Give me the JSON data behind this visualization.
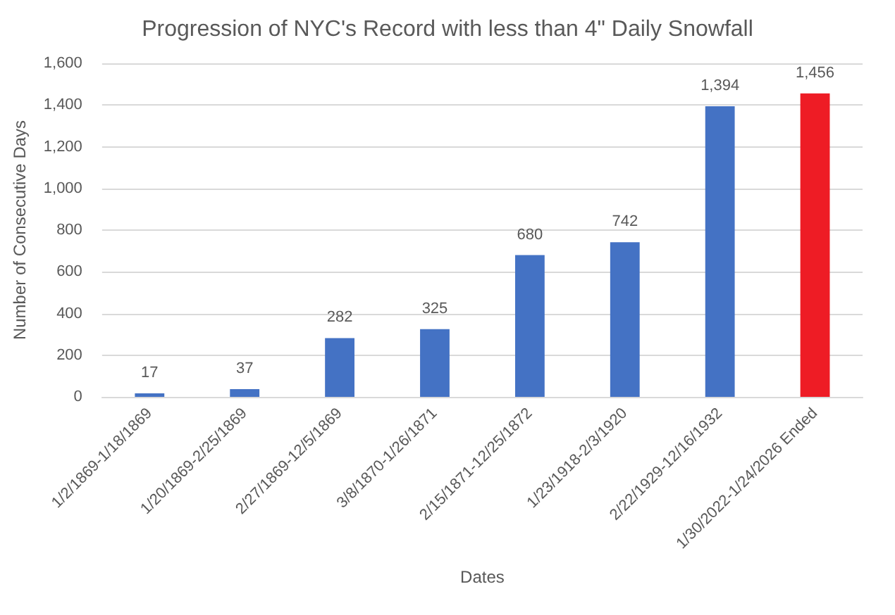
{
  "chart_data": {
    "type": "bar",
    "title": "Progression of NYC's Record with less than 4\" Daily Snowfall",
    "xlabel": "Dates",
    "ylabel": "Number of Consecutive Days",
    "categories": [
      "1/2/1869-1/18/1869",
      "1/20/1869-2/25/1869",
      "2/27/1869-12/5/1869",
      "3/8/1870-1/26/1871",
      "2/15/1871-12/25/1872",
      "1/23/1918-2/3/1920",
      "2/22/1929-12/16/1932",
      "1/30/2022-1/24/2026 Ended"
    ],
    "values": [
      17,
      37,
      282,
      325,
      680,
      742,
      1394,
      1456
    ],
    "value_labels": [
      "17",
      "37",
      "282",
      "325",
      "680",
      "742",
      "1,394",
      "1,456"
    ],
    "colors": [
      "#4472c4",
      "#4472c4",
      "#4472c4",
      "#4472c4",
      "#4472c4",
      "#4472c4",
      "#4472c4",
      "#ee1c25"
    ],
    "ylim": [
      0,
      1600
    ],
    "yticks": [
      0,
      200,
      400,
      600,
      800,
      {
        "value": 1000,
        "label": "1,000"
      },
      {
        "value": 1200,
        "label": "1,200"
      },
      {
        "value": 1400,
        "label": "1,400"
      },
      {
        "value": 1600,
        "label": "1,600"
      }
    ],
    "grid": "y"
  }
}
